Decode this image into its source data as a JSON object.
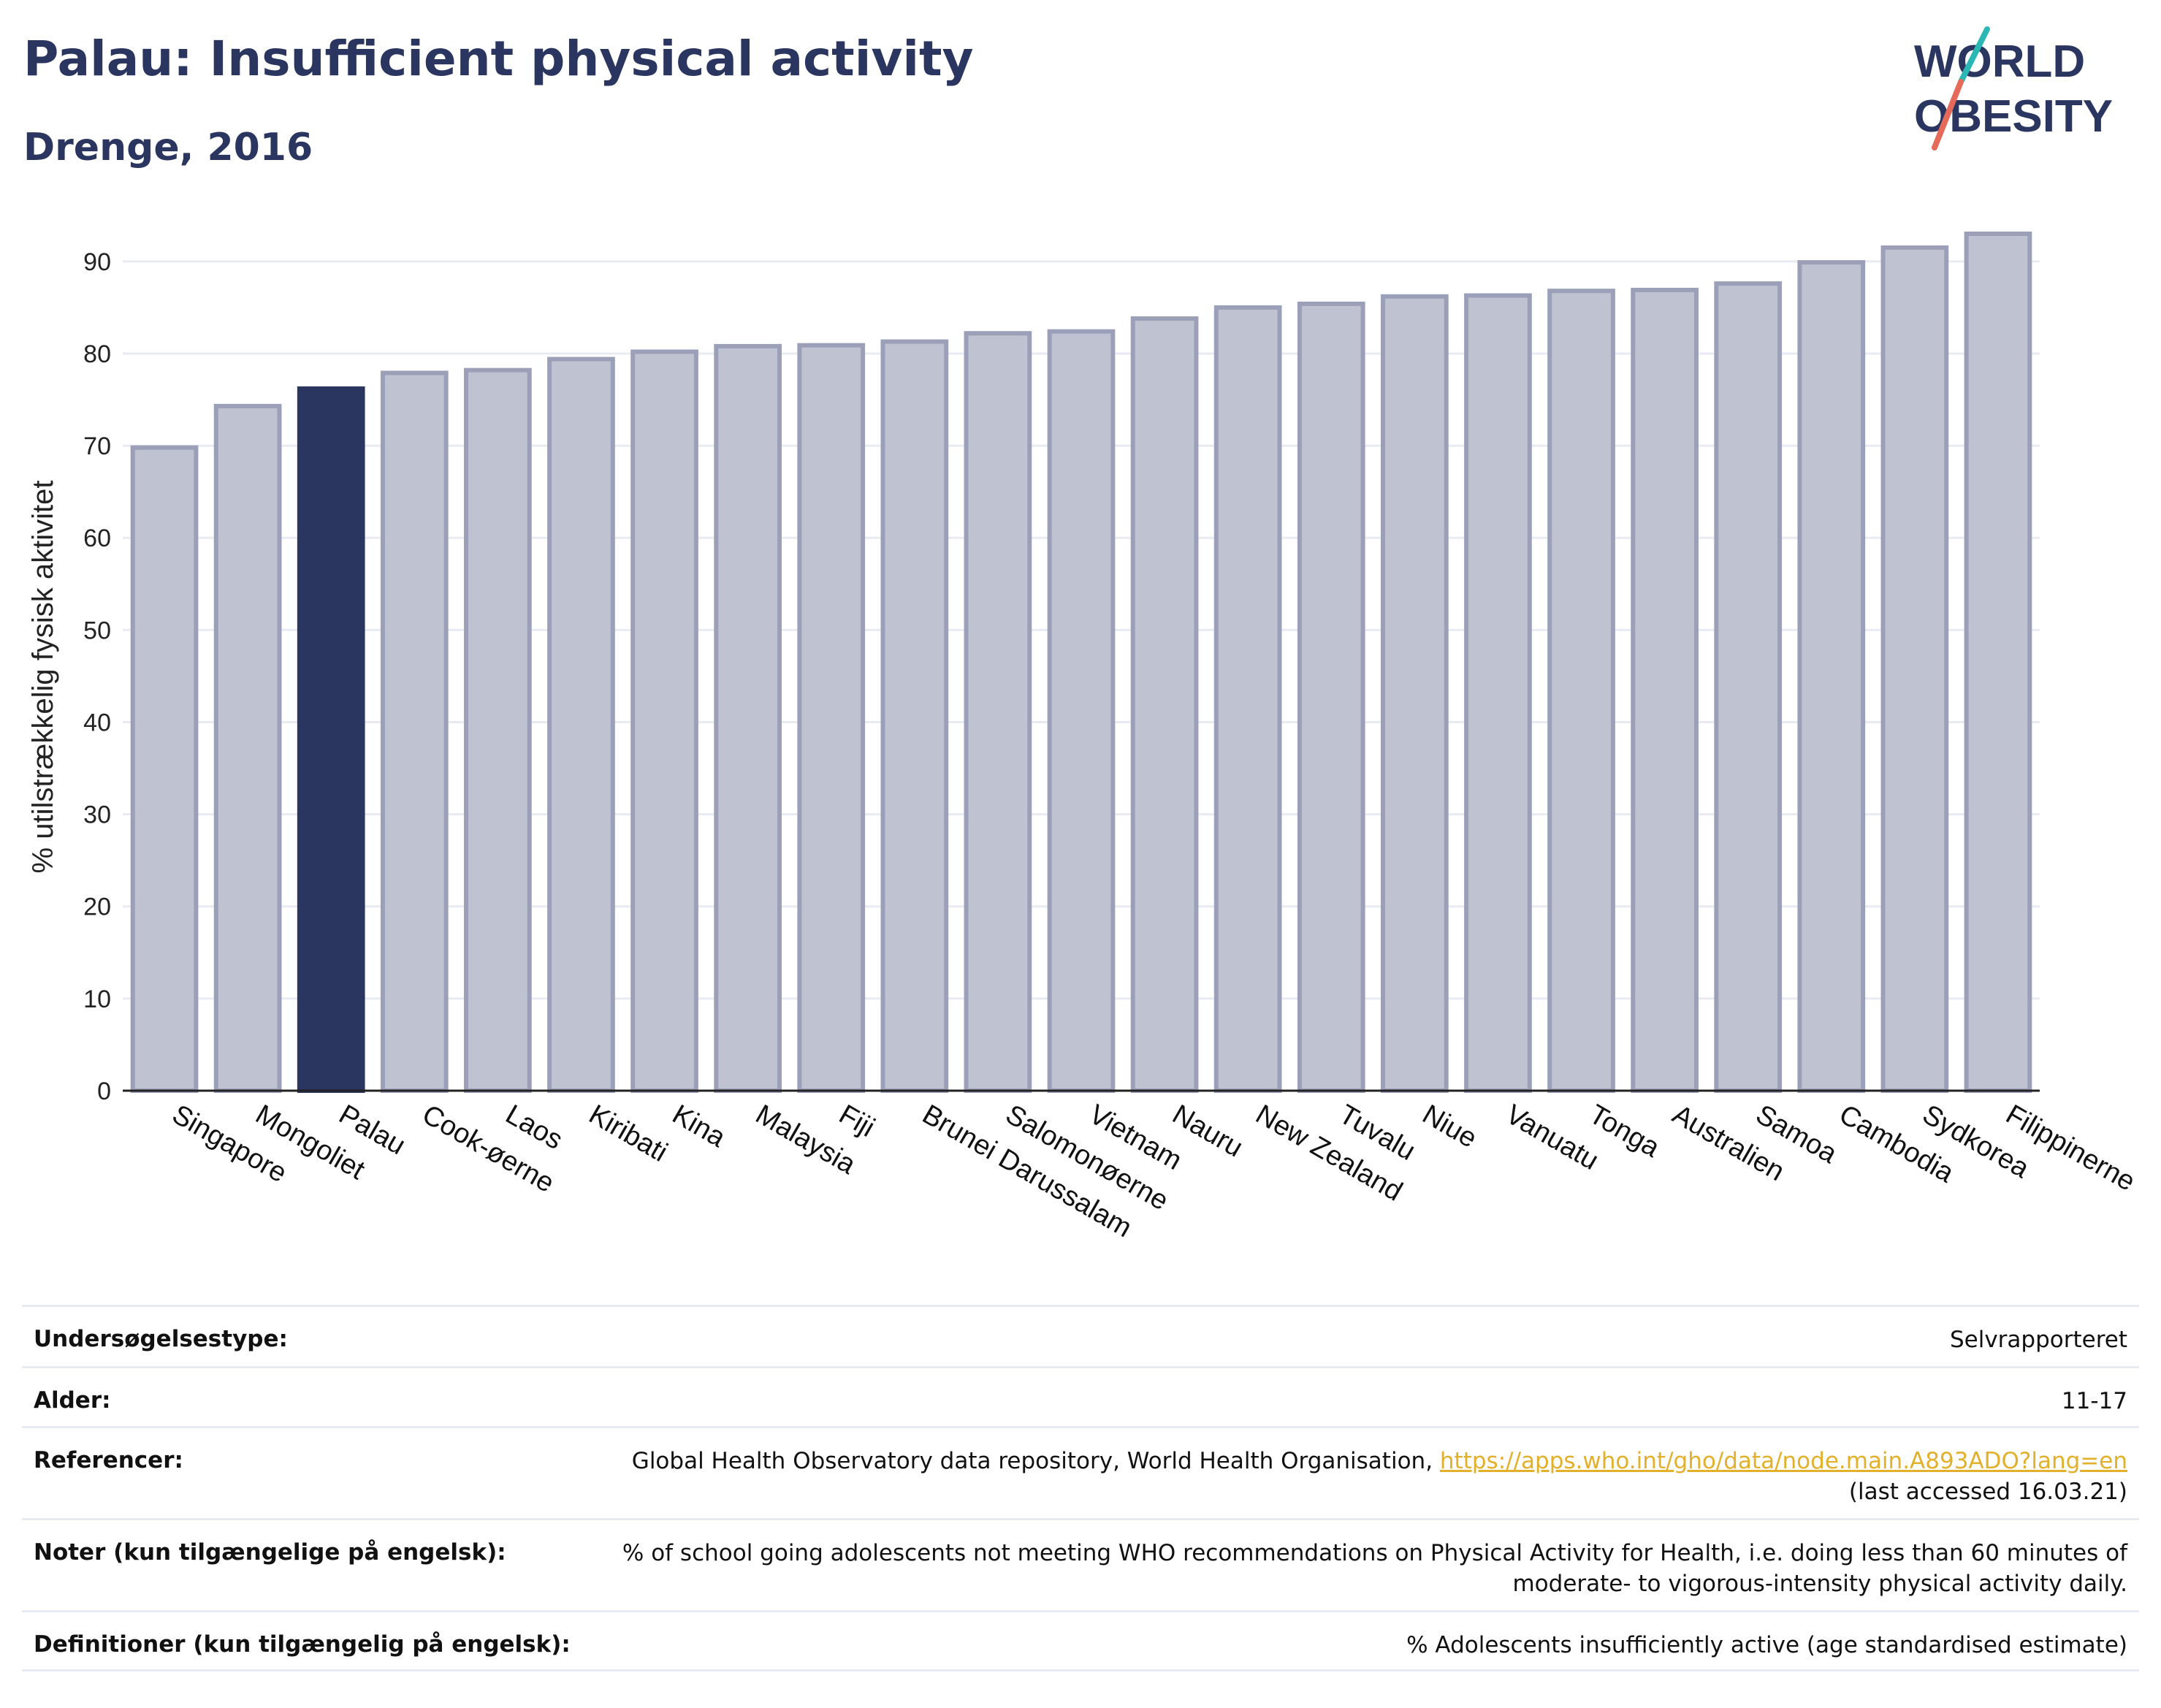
{
  "title": "Palau: Insufficient physical activity",
  "subtitle": "Drenge, 2016",
  "logo": {
    "line1": "WORLD",
    "line2": "OBESITY",
    "colors": [
      "#2b3660",
      "#2bb8b4",
      "#e66a5a"
    ]
  },
  "colors": {
    "bar": "#bfc2d0",
    "bar_border": "#9ba0b8",
    "highlight": "#2b3660",
    "grid": "#e8ebf2",
    "text": "#2b3660",
    "link": "#e3b02b"
  },
  "chart_data": {
    "type": "bar",
    "ylabel": "% utilstrækkelig fysisk aktivitet",
    "ylim": [
      0,
      93
    ],
    "yticks": [
      0,
      10,
      20,
      30,
      40,
      50,
      60,
      70,
      80,
      90
    ],
    "grid": true,
    "highlight": "Palau",
    "categories": [
      "Singapore",
      "Mongoliet",
      "Palau",
      "Cook-øerne",
      "Laos",
      "Kiribati",
      "Kina",
      "Malaysia",
      "Fiji",
      "Brunei Darussalam",
      "Salomonøerne",
      "Vietnam",
      "Nauru",
      "New Zealand",
      "Tuvalu",
      "Niue",
      "Vanuatu",
      "Tonga",
      "Australien",
      "Samoa",
      "Cambodia",
      "Sydkorea",
      "Filippinerne"
    ],
    "values": [
      69.8,
      74.3,
      76.2,
      77.9,
      78.2,
      79.4,
      80.2,
      80.8,
      80.9,
      81.3,
      82.2,
      82.4,
      83.8,
      85.0,
      85.4,
      86.2,
      86.3,
      86.8,
      86.9,
      87.6,
      89.9,
      91.5,
      93.0
    ]
  },
  "meta": [
    {
      "label": "Undersøgelsestype:",
      "value": "Selvrapporteret"
    },
    {
      "label": "Alder:",
      "value": "11-17"
    },
    {
      "label": "Referencer:",
      "value": "Global Health Observatory data repository, World Health Organisation, ",
      "link": "https://apps.who.int/gho/data/node.main.A893ADO?lang=en",
      "value2": "(last accessed 16.03.21)"
    },
    {
      "label": "Noter (kun tilgængelige på engelsk):",
      "value": "% of school going adolescents not meeting WHO recommendations on Physical Activity for Health, i.e. doing less than 60 minutes of moderate- to vigorous-intensity physical activity daily."
    },
    {
      "label": "Definitioner (kun tilgængelig på engelsk):",
      "value": "% Adolescents insufficiently active (age standardised estimate)"
    }
  ]
}
